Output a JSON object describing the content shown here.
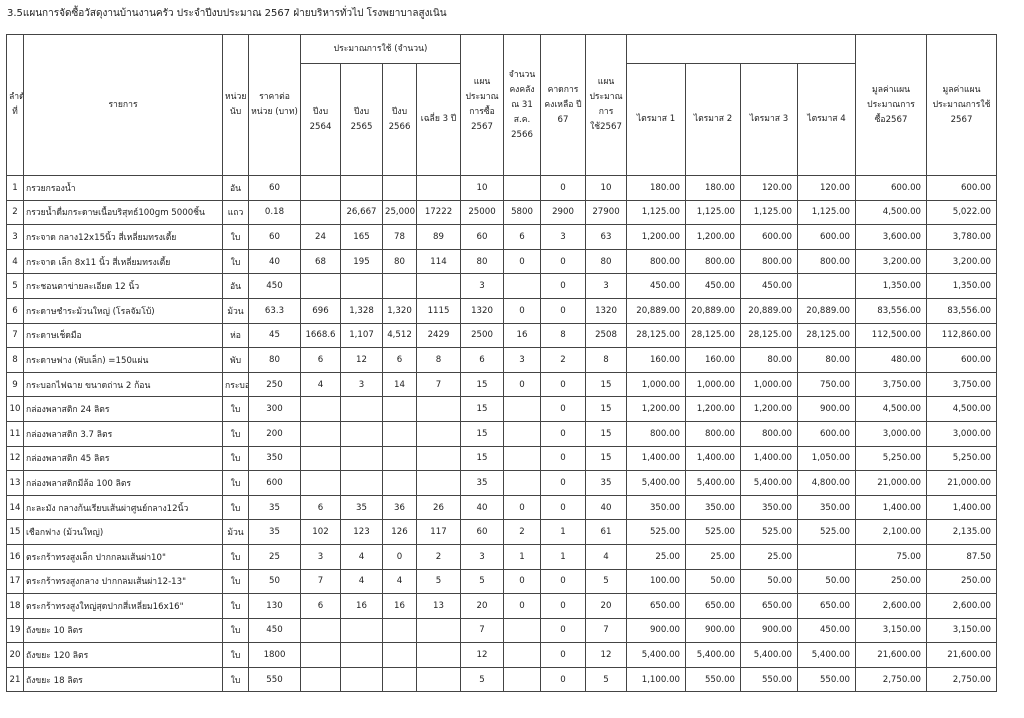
{
  "title": "3.5แผนการจัดซื้อวัสดุงานบ้านงานครัว ประจำปีงบประมาณ 2567  ฝ่ายบริหารทั่วไป โรงพยาบาลสูงเนิน",
  "headers": {
    "no": "ลำดับที่",
    "item": "รายการ",
    "unit": "หน่วยนับ",
    "price": "ราคาต่อหน่วย (บาท)",
    "usage_group": "ประมาณการใช้ (จำนวน)",
    "y2564": "ปีงบ 2564",
    "y2565": "ปีงบ 2565",
    "y2566": "ปีงบ 2566",
    "avg3": "เฉลี่ย 3 ปี",
    "plan_buy": "แผนประมาณการซื้อ 2567",
    "stock": "จำนวนคงคลัง ณ 31 ส.ค. 2566",
    "remain": "คาดการคงเหลือ ปี 67",
    "plan_use": "แผนประมาณการใช้2567",
    "q1": "ไตรมาส  1",
    "q2": "ไตรมาส  2",
    "q3": "ไตรมาส  3",
    "q4": "ไตรมาส  4",
    "value_buy": "มูลค่าแผนประมาณการซื้อ2567",
    "value_use": "มูลค่าแผนประมาณการใช้ 2567"
  },
  "rows": [
    [
      "1",
      "กรวยกรองน้ำ",
      "อัน",
      "60",
      "",
      "",
      "",
      "",
      "10",
      "",
      "0",
      "10",
      "180.00",
      "180.00",
      "120.00",
      "120.00",
      "600.00",
      "600.00"
    ],
    [
      "2",
      "กรวยน้ำดื่มกระดาษเนื้อบริสุทธ์100gm 5000ชิ้น",
      "แถว",
      "0.18",
      "",
      "26,667",
      "25,000",
      "17222",
      "25000",
      "5800",
      "2900",
      "27900",
      "1,125.00",
      "1,125.00",
      "1,125.00",
      "1,125.00",
      "4,500.00",
      "5,022.00"
    ],
    [
      "3",
      "กระจาด กลาง12x15นิ้ว สี่เหลี่ยมทรงเตี้ย",
      "ใบ",
      "60",
      "24",
      "165",
      "78",
      "89",
      "60",
      "6",
      "3",
      "63",
      "1,200.00",
      "1,200.00",
      "600.00",
      "600.00",
      "3,600.00",
      "3,780.00"
    ],
    [
      "4",
      "กระจาด เล็ก 8x11 นิ้ว  สี่เหลี่ยมทรงเตี้ย",
      "ใบ",
      "40",
      "68",
      "195",
      "80",
      "114",
      "80",
      "0",
      "0",
      "80",
      "800.00",
      "800.00",
      "800.00",
      "800.00",
      "3,200.00",
      "3,200.00"
    ],
    [
      "5",
      "กระชอนตาข่ายละเอียด  12  นิ้ว",
      "อัน",
      "450",
      "",
      "",
      "",
      "",
      "3",
      "",
      "0",
      "3",
      "450.00",
      "450.00",
      "450.00",
      "",
      "1,350.00",
      "1,350.00"
    ],
    [
      "6",
      "กระดาษชำระม้วนใหญ่  (โรลจัมโบ้)",
      "ม้วน",
      "63.3",
      "696",
      "1,328",
      "1,320",
      "1115",
      "1320",
      "0",
      "0",
      "1320",
      "20,889.00",
      "20,889.00",
      "20,889.00",
      "20,889.00",
      "83,556.00",
      "83,556.00"
    ],
    [
      "7",
      "กระดาษเช็ดมือ",
      "ห่อ",
      "45",
      "1668.6",
      "1,107",
      "4,512",
      "2429",
      "2500",
      "16",
      "8",
      "2508",
      "28,125.00",
      "28,125.00",
      "28,125.00",
      "28,125.00",
      "112,500.00",
      "112,860.00"
    ],
    [
      "8",
      "กระดาษฟาง   (พับเล็ก) =150แผ่น",
      "พับ",
      "80",
      "6",
      "12",
      "6",
      "8",
      "6",
      "3",
      "2",
      "8",
      "160.00",
      "160.00",
      "80.00",
      "80.00",
      "480.00",
      "600.00"
    ],
    [
      "9",
      "กระบอกไฟฉาย ขนาดถ่าน  2 ก้อน",
      "กระบอก",
      "250",
      "4",
      "3",
      "14",
      "7",
      "15",
      "0",
      "0",
      "15",
      "1,000.00",
      "1,000.00",
      "1,000.00",
      "750.00",
      "3,750.00",
      "3,750.00"
    ],
    [
      "10",
      "กล่องพลาสติก 24 ลิตร",
      "ใบ",
      "300",
      "",
      "",
      "",
      "",
      "15",
      "",
      "0",
      "15",
      "1,200.00",
      "1,200.00",
      "1,200.00",
      "900.00",
      "4,500.00",
      "4,500.00"
    ],
    [
      "11",
      "กล่องพลาสติก 3.7 ลิตร",
      "ใบ",
      "200",
      "",
      "",
      "",
      "",
      "15",
      "",
      "0",
      "15",
      "800.00",
      "800.00",
      "800.00",
      "600.00",
      "3,000.00",
      "3,000.00"
    ],
    [
      "12",
      "กล่องพลาสติก 45 ลิตร",
      "ใบ",
      "350",
      "",
      "",
      "",
      "",
      "15",
      "",
      "0",
      "15",
      "1,400.00",
      "1,400.00",
      "1,400.00",
      "1,050.00",
      "5,250.00",
      "5,250.00"
    ],
    [
      "13",
      "กล่องพลาสติกมีล้อ 100 ลิตร",
      "ใบ",
      "600",
      "",
      "",
      "",
      "",
      "35",
      "",
      "0",
      "35",
      "5,400.00",
      "5,400.00",
      "5,400.00",
      "4,800.00",
      "21,000.00",
      "21,000.00"
    ],
    [
      "14",
      "กะละมัง กลางก้นเรียบเส้นผ่าศูนย์กลาง12นิ้ว",
      "ใบ",
      "35",
      "6",
      "35",
      "36",
      "26",
      "40",
      "0",
      "0",
      "40",
      "350.00",
      "350.00",
      "350.00",
      "350.00",
      "1,400.00",
      "1,400.00"
    ],
    [
      "15",
      "เชือกฟาง   (ม้วนใหญ่)",
      "ม้วน",
      "35",
      "102",
      "123",
      "126",
      "117",
      "60",
      "2",
      "1",
      "61",
      "525.00",
      "525.00",
      "525.00",
      "525.00",
      "2,100.00",
      "2,135.00"
    ],
    [
      "16",
      "ตระกร้าทรงสูงเล็ก ปากกลมเส้นผ่า10\"",
      "ใบ",
      "25",
      "3",
      "4",
      "0",
      "2",
      "3",
      "1",
      "1",
      "4",
      "25.00",
      "25.00",
      "25.00",
      "",
      "75.00",
      "87.50"
    ],
    [
      "17",
      "ตระกร้าทรงสูงกลาง ปากกลมเส้นผ่า12-13\"",
      "ใบ",
      "50",
      "7",
      "4",
      "4",
      "5",
      "5",
      "0",
      "0",
      "5",
      "100.00",
      "50.00",
      "50.00",
      "50.00",
      "250.00",
      "250.00"
    ],
    [
      "18",
      "ตระกร้าทรงสูงใหญ่สุดปากสี่เหลี่ยม16x16\"",
      "ใบ",
      "130",
      "6",
      "16",
      "16",
      "13",
      "20",
      "0",
      "0",
      "20",
      "650.00",
      "650.00",
      "650.00",
      "650.00",
      "2,600.00",
      "2,600.00"
    ],
    [
      "19",
      "ถังขยะ 10 ลิตร",
      "ใบ",
      "450",
      "",
      "",
      "",
      "",
      "7",
      "",
      "0",
      "7",
      "900.00",
      "900.00",
      "900.00",
      "450.00",
      "3,150.00",
      "3,150.00"
    ],
    [
      "20",
      "ถังขยะ 120 ลิตร",
      "ใบ",
      "1800",
      "",
      "",
      "",
      "",
      "12",
      "",
      "0",
      "12",
      "5,400.00",
      "5,400.00",
      "5,400.00",
      "5,400.00",
      "21,600.00",
      "21,600.00"
    ],
    [
      "21",
      "ถังขยะ 18 ลิตร",
      "ใบ",
      "550",
      "",
      "",
      "",
      "",
      "5",
      "",
      "0",
      "5",
      "1,100.00",
      "550.00",
      "550.00",
      "550.00",
      "2,750.00",
      "2,750.00"
    ]
  ]
}
